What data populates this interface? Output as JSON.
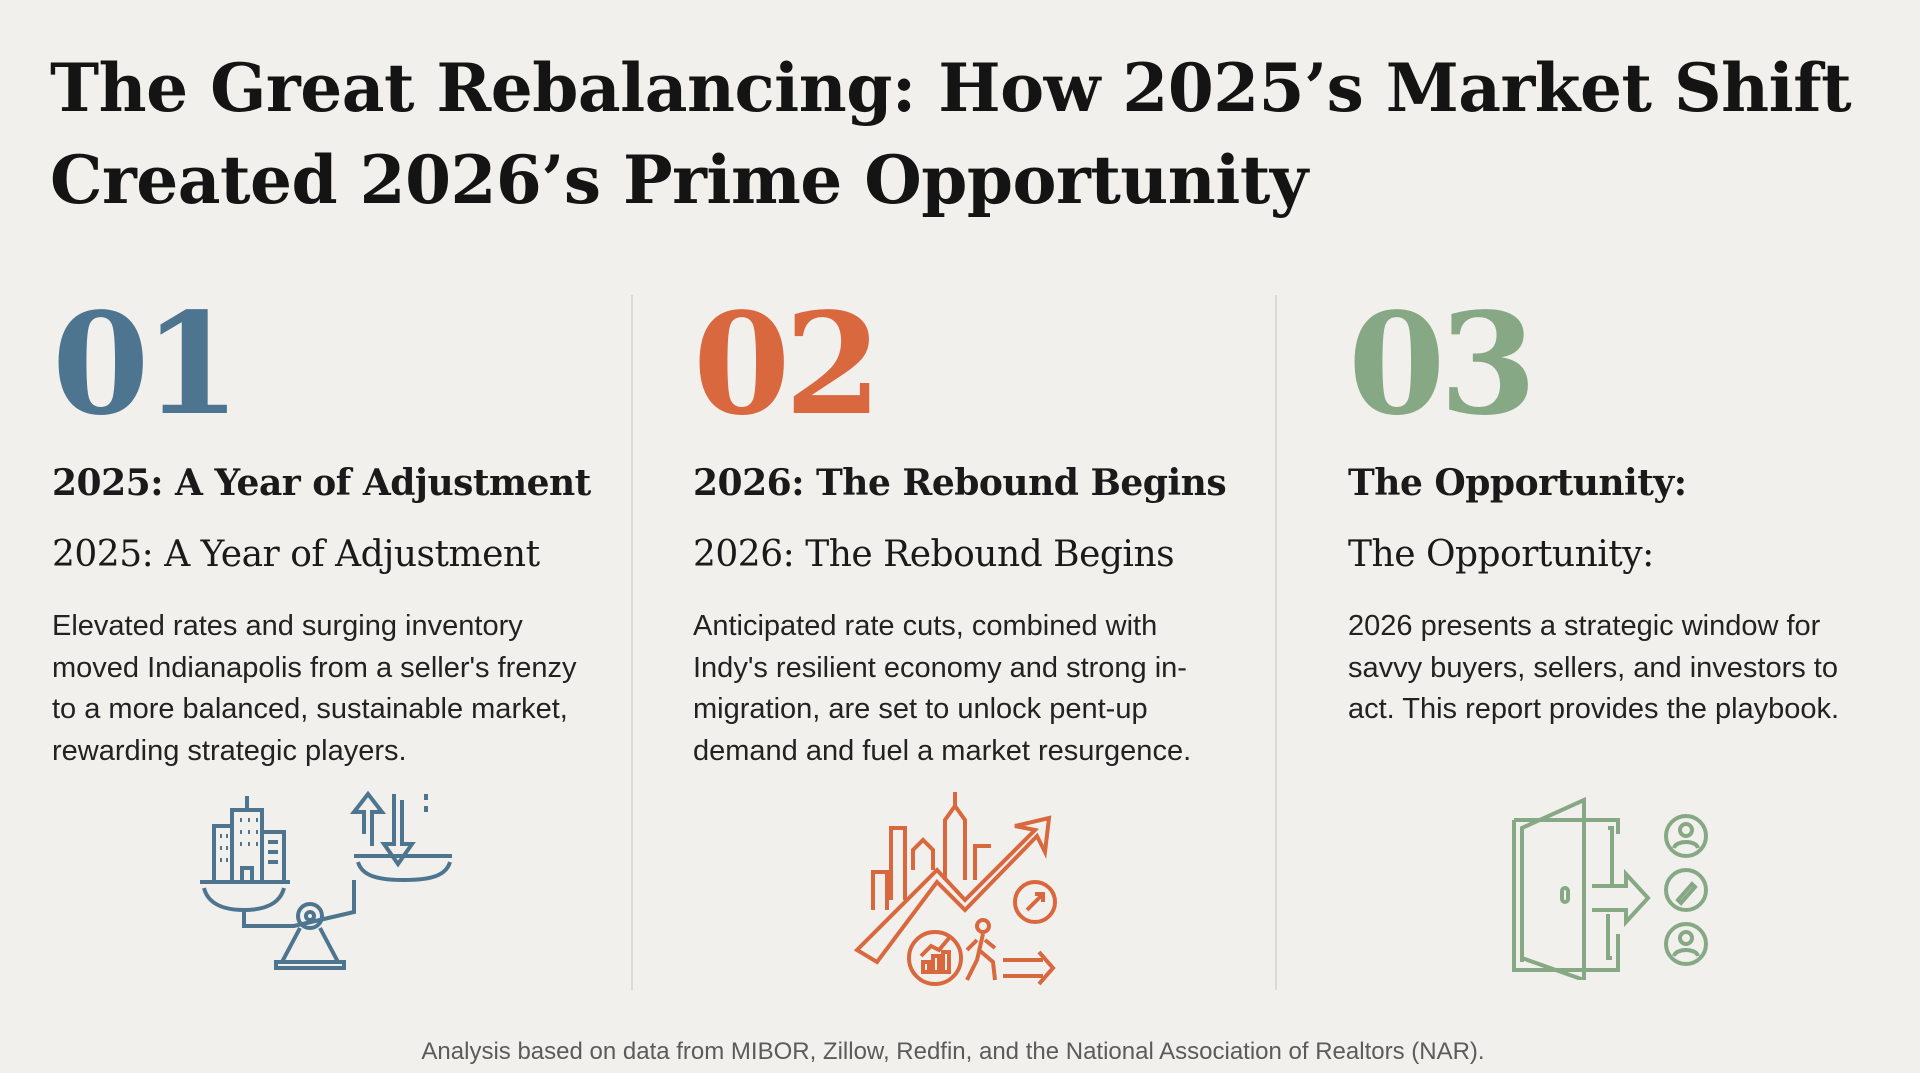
{
  "title": "The Great Rebalancing: How 2025’s Market Shift Created 2026’s Prime Opportunity",
  "colors": {
    "background": "#f1f0ec",
    "blue": "#4d7590",
    "orange": "#d9683f",
    "green": "#87a884"
  },
  "columns": [
    {
      "number": "01",
      "heading": "2025: A Year of Adjustment",
      "subheading": "2025: A Year of Adjustment",
      "body": "Elevated rates and surging inventory moved Indianapolis from a seller's frenzy to a more balanced, sustainable market, rewarding strategic players.",
      "icon": "scale-buildings-arrows-icon",
      "color": "#4d7590"
    },
    {
      "number": "02",
      "heading": "2026: The Rebound Begins",
      "subheading": "2026: The Rebound Begins",
      "body": "Anticipated rate cuts, combined with Indy's resilient economy and strong in-migration, are set to unlock pent-up demand and fuel a market resurgence.",
      "icon": "city-growth-arrow-icon",
      "color": "#d9683f"
    },
    {
      "number": "03",
      "heading": "The Opportunity:",
      "subheading": "The Opportunity:",
      "body": "2026 presents a strategic window for savvy buyers, sellers, and investors to act. This report provides the playbook.",
      "icon": "open-door-people-icon",
      "color": "#87a884"
    }
  ],
  "footer": "Analysis based on data from MIBOR, Zillow, Redfin, and the National Association of Realtors (NAR)."
}
